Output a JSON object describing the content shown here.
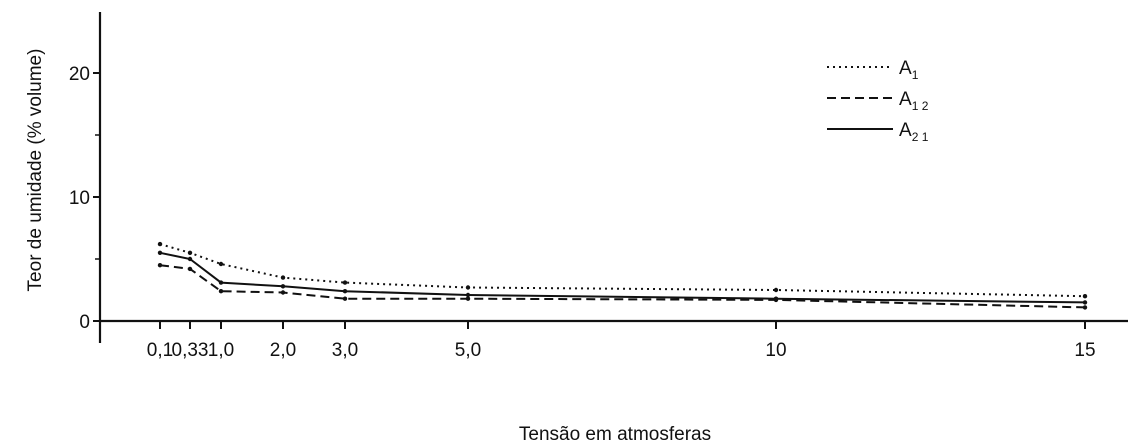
{
  "chart_data": {
    "type": "line",
    "xlabel": "Tensão em atmosferas",
    "ylabel": "Teor de umidade (% volume)",
    "x_ticks": [
      {
        "value": 0.1,
        "label": "0,1"
      },
      {
        "value": 0.33,
        "label": "0,33"
      },
      {
        "value": 1.0,
        "label": "1,0"
      },
      {
        "value": 2.0,
        "label": "2,0"
      },
      {
        "value": 3.0,
        "label": "3,0"
      },
      {
        "value": 5.0,
        "label": "5,0"
      },
      {
        "value": 10,
        "label": "10"
      },
      {
        "value": 15,
        "label": "15"
      }
    ],
    "y_ticks": [
      {
        "value": 0,
        "label": "0"
      },
      {
        "value": 10,
        "label": "10"
      },
      {
        "value": 20,
        "label": "20"
      }
    ],
    "ylim": [
      0,
      25
    ],
    "grid": false,
    "legend_position": "top-right",
    "series": [
      {
        "name": "A",
        "name_sub": "1",
        "line_style": "dotted",
        "x": [
          0.1,
          0.33,
          1.0,
          2.0,
          3.0,
          5.0,
          10,
          15
        ],
        "values": [
          6.2,
          5.5,
          4.6,
          3.5,
          3.1,
          2.7,
          2.5,
          2.0
        ]
      },
      {
        "name": "A",
        "name_sub": "1 2",
        "line_style": "dashed",
        "x": [
          0.1,
          0.33,
          1.0,
          2.0,
          3.0,
          5.0,
          10,
          15
        ],
        "values": [
          4.5,
          4.2,
          2.4,
          2.3,
          1.8,
          1.8,
          1.7,
          1.1
        ]
      },
      {
        "name": "A",
        "name_sub": "2 1",
        "line_style": "solid",
        "x": [
          0.1,
          0.33,
          1.0,
          2.0,
          3.0,
          5.0,
          10,
          15
        ],
        "values": [
          5.5,
          5.0,
          3.1,
          2.8,
          2.4,
          2.1,
          1.8,
          1.5
        ]
      }
    ]
  }
}
